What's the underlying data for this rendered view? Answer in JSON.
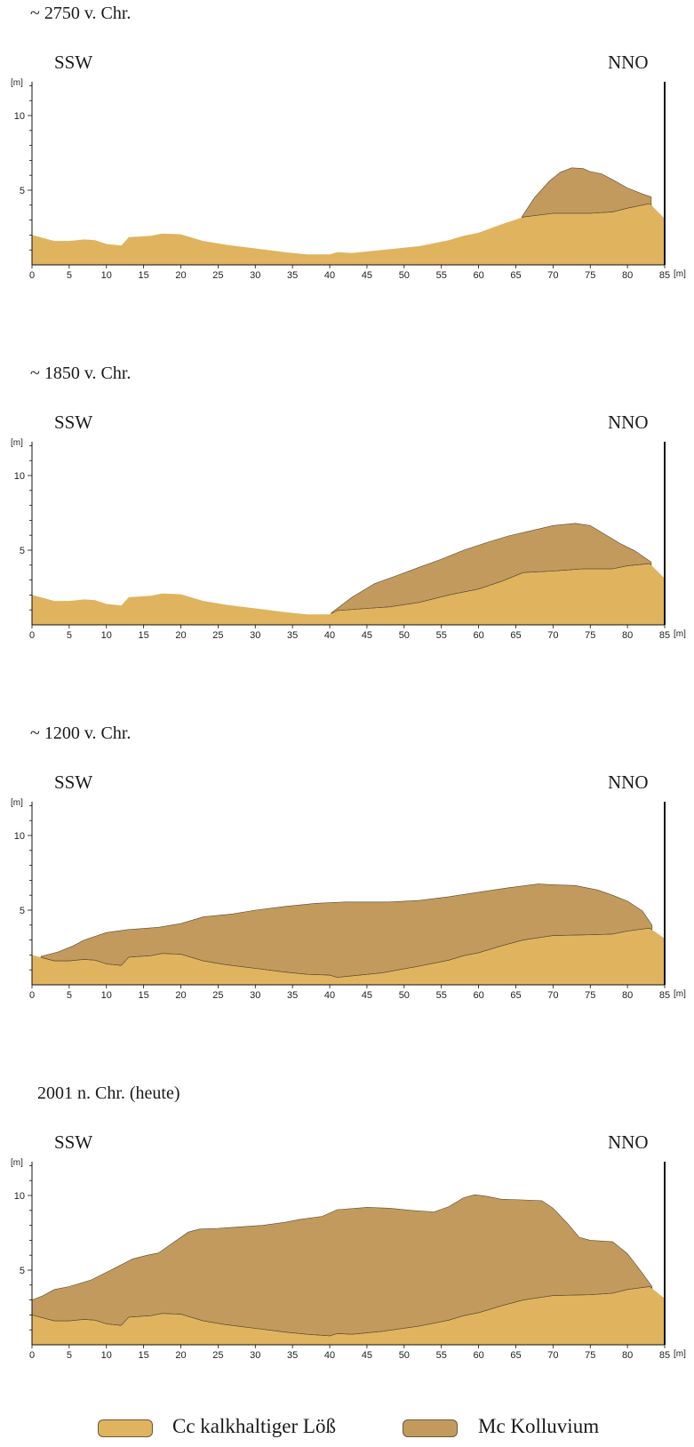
{
  "colors": {
    "loess": "#E0B35F",
    "kolluvium": "#C29A5E",
    "outline": "#5a4a30",
    "axis": "#111111"
  },
  "axis": {
    "x_ticks": [
      "0",
      "5",
      "10",
      "15",
      "20",
      "25",
      "30",
      "35",
      "40",
      "45",
      "50",
      "55",
      "60",
      "65",
      "70",
      "75",
      "80",
      "85"
    ],
    "x_unit": "[m]",
    "y_ticks": [
      "5",
      "10"
    ],
    "y_unit": "[m]"
  },
  "directions": {
    "left": "SSW",
    "right": "NNO"
  },
  "periods": [
    {
      "title": "~ 2750 v. Chr.",
      "loess_top": [
        [
          0,
          2.0
        ],
        [
          1.5,
          1.8
        ],
        [
          3,
          1.6
        ],
        [
          5,
          1.6
        ],
        [
          7,
          1.7
        ],
        [
          8.5,
          1.65
        ],
        [
          10,
          1.4
        ],
        [
          12,
          1.3
        ],
        [
          13,
          1.85
        ],
        [
          16,
          1.95
        ],
        [
          17.5,
          2.1
        ],
        [
          20,
          2.05
        ],
        [
          23,
          1.6
        ],
        [
          26,
          1.35
        ],
        [
          30,
          1.1
        ],
        [
          34,
          0.85
        ],
        [
          37,
          0.7
        ],
        [
          40,
          0.7
        ],
        [
          41,
          0.85
        ],
        [
          43,
          0.8
        ],
        [
          47,
          1.0
        ],
        [
          52,
          1.25
        ],
        [
          56,
          1.65
        ],
        [
          58,
          1.95
        ],
        [
          60,
          2.15
        ],
        [
          63,
          2.7
        ],
        [
          66,
          3.2
        ],
        [
          70,
          3.45
        ],
        [
          75,
          3.45
        ],
        [
          78,
          3.55
        ],
        [
          80,
          3.8
        ],
        [
          83,
          4.1
        ],
        [
          85,
          3.1
        ]
      ],
      "kolluvium_top": [
        [
          65.8,
          3.2
        ],
        [
          67.5,
          4.5
        ],
        [
          69.5,
          5.6
        ],
        [
          71,
          6.2
        ],
        [
          72.5,
          6.5
        ],
        [
          74,
          6.45
        ],
        [
          75,
          6.25
        ],
        [
          76.5,
          6.1
        ],
        [
          78,
          5.7
        ],
        [
          80,
          5.15
        ],
        [
          82,
          4.75
        ],
        [
          83.2,
          4.55
        ]
      ]
    },
    {
      "title": "~ 1850 v. Chr.",
      "loess_top": [
        [
          0,
          2.0
        ],
        [
          1.5,
          1.8
        ],
        [
          3,
          1.6
        ],
        [
          5,
          1.6
        ],
        [
          7,
          1.7
        ],
        [
          8.5,
          1.65
        ],
        [
          10,
          1.4
        ],
        [
          12,
          1.3
        ],
        [
          13,
          1.85
        ],
        [
          16,
          1.95
        ],
        [
          17.5,
          2.1
        ],
        [
          20,
          2.05
        ],
        [
          23,
          1.6
        ],
        [
          26,
          1.35
        ],
        [
          30,
          1.1
        ],
        [
          34,
          0.85
        ],
        [
          37,
          0.7
        ],
        [
          40,
          0.7
        ],
        [
          41,
          0.95
        ],
        [
          45,
          1.1
        ],
        [
          48,
          1.2
        ],
        [
          52,
          1.5
        ],
        [
          56,
          2.0
        ],
        [
          60,
          2.4
        ],
        [
          63,
          2.9
        ],
        [
          66,
          3.5
        ],
        [
          70,
          3.6
        ],
        [
          74,
          3.75
        ],
        [
          78,
          3.75
        ],
        [
          80,
          3.95
        ],
        [
          83,
          4.1
        ],
        [
          85,
          3.1
        ]
      ],
      "kolluvium_top": [
        [
          40.2,
          0.8
        ],
        [
          43,
          1.85
        ],
        [
          46,
          2.75
        ],
        [
          49,
          3.3
        ],
        [
          52,
          3.85
        ],
        [
          55,
          4.4
        ],
        [
          58,
          5.0
        ],
        [
          61,
          5.5
        ],
        [
          64,
          5.95
        ],
        [
          67,
          6.3
        ],
        [
          70,
          6.65
        ],
        [
          73,
          6.8
        ],
        [
          75,
          6.65
        ],
        [
          77,
          6.05
        ],
        [
          79,
          5.45
        ],
        [
          81,
          4.95
        ],
        [
          83.2,
          4.2
        ]
      ]
    },
    {
      "title": "~ 1200 v. Chr.",
      "loess_top": [
        [
          0,
          2.0
        ],
        [
          1.5,
          1.8
        ],
        [
          3,
          1.6
        ],
        [
          5,
          1.6
        ],
        [
          7,
          1.7
        ],
        [
          8.5,
          1.65
        ],
        [
          10,
          1.4
        ],
        [
          12,
          1.3
        ],
        [
          13,
          1.85
        ],
        [
          16,
          1.95
        ],
        [
          17.5,
          2.1
        ],
        [
          20,
          2.05
        ],
        [
          23,
          1.6
        ],
        [
          26,
          1.35
        ],
        [
          30,
          1.1
        ],
        [
          34,
          0.85
        ],
        [
          37,
          0.7
        ],
        [
          40,
          0.65
        ],
        [
          41,
          0.5
        ],
        [
          43,
          0.6
        ],
        [
          47,
          0.8
        ],
        [
          52,
          1.25
        ],
        [
          56,
          1.65
        ],
        [
          58,
          1.95
        ],
        [
          60,
          2.15
        ],
        [
          63,
          2.6
        ],
        [
          66,
          3.0
        ],
        [
          70,
          3.3
        ],
        [
          75,
          3.35
        ],
        [
          78,
          3.4
        ],
        [
          80,
          3.6
        ],
        [
          83,
          3.8
        ],
        [
          85,
          3.1
        ]
      ],
      "kolluvium_top": [
        [
          1.2,
          1.9
        ],
        [
          3.5,
          2.2
        ],
        [
          5.5,
          2.6
        ],
        [
          7,
          3.0
        ],
        [
          10,
          3.5
        ],
        [
          13,
          3.7
        ],
        [
          17,
          3.85
        ],
        [
          20,
          4.1
        ],
        [
          23,
          4.55
        ],
        [
          27,
          4.75
        ],
        [
          30,
          5.0
        ],
        [
          34,
          5.25
        ],
        [
          38,
          5.45
        ],
        [
          42,
          5.55
        ],
        [
          48,
          5.55
        ],
        [
          52,
          5.65
        ],
        [
          56,
          5.9
        ],
        [
          60,
          6.2
        ],
        [
          64,
          6.5
        ],
        [
          68,
          6.75
        ],
        [
          70,
          6.7
        ],
        [
          73,
          6.65
        ],
        [
          76,
          6.35
        ],
        [
          78,
          6.0
        ],
        [
          80,
          5.6
        ],
        [
          82,
          4.95
        ],
        [
          83.3,
          4.0
        ]
      ]
    },
    {
      "title": "2001 n. Chr. (heute)",
      "loess_top": [
        [
          0,
          2.0
        ],
        [
          1.5,
          1.8
        ],
        [
          3,
          1.6
        ],
        [
          5,
          1.6
        ],
        [
          7,
          1.7
        ],
        [
          8.5,
          1.65
        ],
        [
          10,
          1.4
        ],
        [
          12,
          1.3
        ],
        [
          13,
          1.85
        ],
        [
          16,
          1.95
        ],
        [
          17.5,
          2.1
        ],
        [
          20,
          2.05
        ],
        [
          23,
          1.6
        ],
        [
          26,
          1.35
        ],
        [
          30,
          1.1
        ],
        [
          34,
          0.85
        ],
        [
          37,
          0.7
        ],
        [
          40,
          0.6
        ],
        [
          41,
          0.75
        ],
        [
          43,
          0.7
        ],
        [
          47,
          0.9
        ],
        [
          52,
          1.25
        ],
        [
          56,
          1.65
        ],
        [
          58,
          1.95
        ],
        [
          60,
          2.15
        ],
        [
          63,
          2.6
        ],
        [
          66,
          3.0
        ],
        [
          70,
          3.3
        ],
        [
          75,
          3.35
        ],
        [
          78,
          3.45
        ],
        [
          80,
          3.7
        ],
        [
          83,
          3.9
        ],
        [
          85,
          3.1
        ]
      ],
      "kolluvium_top": [
        [
          0,
          3.0
        ],
        [
          1.5,
          3.3
        ],
        [
          3,
          3.7
        ],
        [
          5,
          3.9
        ],
        [
          8,
          4.35
        ],
        [
          11,
          5.1
        ],
        [
          13.5,
          5.75
        ],
        [
          15.5,
          6.0
        ],
        [
          17,
          6.15
        ],
        [
          19,
          6.85
        ],
        [
          21,
          7.55
        ],
        [
          22.5,
          7.75
        ],
        [
          25,
          7.8
        ],
        [
          28,
          7.9
        ],
        [
          31,
          8.0
        ],
        [
          34,
          8.2
        ],
        [
          36,
          8.4
        ],
        [
          39,
          8.6
        ],
        [
          41,
          9.05
        ],
        [
          45,
          9.2
        ],
        [
          48,
          9.15
        ],
        [
          51,
          9.0
        ],
        [
          54,
          8.9
        ],
        [
          56,
          9.25
        ],
        [
          58,
          9.85
        ],
        [
          59.5,
          10.05
        ],
        [
          61,
          9.95
        ],
        [
          63,
          9.75
        ],
        [
          66,
          9.7
        ],
        [
          68.5,
          9.65
        ],
        [
          70,
          9.15
        ],
        [
          72,
          8.1
        ],
        [
          73.5,
          7.2
        ],
        [
          75,
          7.0
        ],
        [
          78,
          6.9
        ],
        [
          80,
          6.1
        ],
        [
          82,
          4.8
        ],
        [
          83.3,
          3.9
        ]
      ]
    }
  ],
  "legend": [
    {
      "key": "loess",
      "label": "Cc  kalkhaltiger Löß"
    },
    {
      "key": "kolluvium",
      "label": "Mc Kolluvium"
    }
  ]
}
